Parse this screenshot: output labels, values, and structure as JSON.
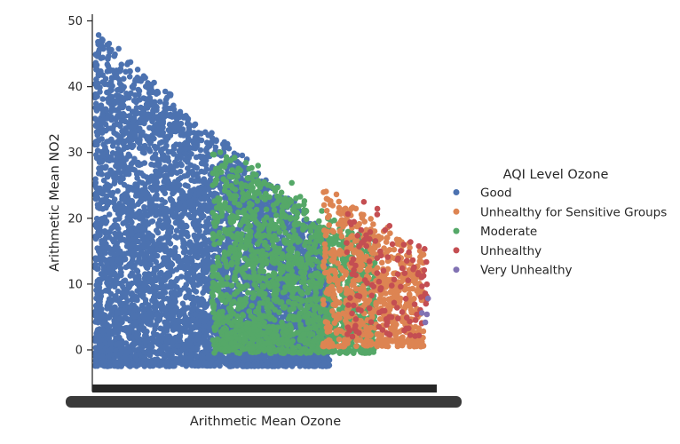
{
  "chart_data": {
    "type": "scatter",
    "title": "",
    "xlabel": "Arithmetic Mean Ozone",
    "ylabel": "Arithmetic Mean NO2",
    "x_axis": "categorical",
    "x_tick_labels_overlapping": true,
    "ylim": [
      -5,
      50
    ],
    "yticks": [
      0,
      10,
      20,
      30,
      40,
      50
    ],
    "grid": false,
    "legend": {
      "title": "AQI Level Ozone",
      "placement": "right",
      "entries": [
        {
          "name": "Good",
          "color": "#4c72b0"
        },
        {
          "name": "Unhealthy for Sensitive Groups",
          "color": "#dd8452"
        },
        {
          "name": "Moderate",
          "color": "#55a868"
        },
        {
          "name": "Unhealthy",
          "color": "#c44e52"
        },
        {
          "name": "Very Unhealthy",
          "color": "#8172b3"
        }
      ]
    },
    "series": [
      {
        "name": "Good",
        "x_range": [
          0.0,
          0.07
        ],
        "y_range": [
          -3,
          48
        ],
        "color": "#4c72b0"
      },
      {
        "name": "Moderate",
        "x_range": [
          0.035,
          0.085
        ],
        "y_range": [
          -1,
          35
        ],
        "color": "#55a868"
      },
      {
        "name": "Unhealthy for Sensitive Groups",
        "x_range": [
          0.07,
          0.1
        ],
        "y_range": [
          1,
          27
        ],
        "color": "#dd8452"
      },
      {
        "name": "Unhealthy",
        "x_range": [
          0.075,
          0.102
        ],
        "y_range": [
          2,
          27
        ],
        "color": "#c44e52"
      },
      {
        "name": "Very Unhealthy",
        "x_range": [
          0.1,
          0.105
        ],
        "y_range": [
          4,
          8
        ],
        "color": "#8172b3"
      }
    ]
  }
}
